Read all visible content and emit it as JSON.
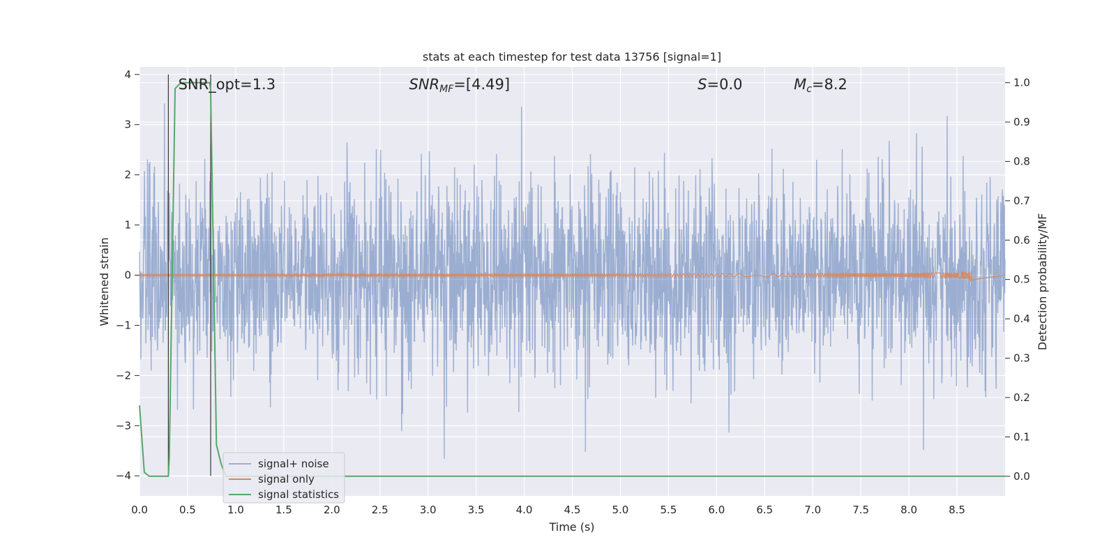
{
  "chart_data": {
    "type": "line",
    "title": "stats at each timestep for test data 13756 [signal=1]",
    "xlabel": "Time (s)",
    "ylabel_left": "Whitened strain",
    "ylabel_right": "Detection probability/MF",
    "xlim": [
      0,
      9.0
    ],
    "ylim_left": [
      -4.4,
      4.15
    ],
    "ylim_right": [
      -0.05,
      1.04
    ],
    "x_ticks": [
      0.0,
      0.5,
      1.0,
      1.5,
      2.0,
      2.5,
      3.0,
      3.5,
      4.0,
      4.5,
      5.0,
      5.5,
      6.0,
      6.5,
      7.0,
      7.5,
      8.0,
      8.5
    ],
    "x_tick_labels": [
      "0.0",
      "0.5",
      "1.0",
      "1.5",
      "2.0",
      "2.5",
      "3.0",
      "3.5",
      "4.0",
      "4.5",
      "5.0",
      "5.5",
      "6.0",
      "6.5",
      "7.0",
      "7.5",
      "8.0",
      "8.5"
    ],
    "y_left_ticks": [
      -4,
      -3,
      -2,
      -1,
      0,
      1,
      2,
      3,
      4
    ],
    "y_left_tick_labels": [
      "−4",
      "−3",
      "−2",
      "−1",
      "0",
      "1",
      "2",
      "3",
      "4"
    ],
    "y_right_ticks": [
      0.0,
      0.1,
      0.2,
      0.3,
      0.4,
      0.5,
      0.6,
      0.7,
      0.8,
      0.9,
      1.0
    ],
    "y_right_tick_labels": [
      "0.0",
      "0.1",
      "0.2",
      "0.3",
      "0.4",
      "0.5",
      "0.6",
      "0.7",
      "0.8",
      "0.9",
      "1.0"
    ],
    "grid": true,
    "legend_position": "lower-left",
    "annotations": [
      {
        "text": "SNR_opt=1.3",
        "x": 0.2,
        "y": 3.8
      },
      {
        "text": "SNR_MF=[4.49]",
        "x": 2.6,
        "y": 3.8
      },
      {
        "text": "S=0.0",
        "x": 5.6,
        "y": 3.8
      },
      {
        "text": "M_c=8.2",
        "x": 6.6,
        "y": 3.8
      }
    ],
    "vlines": [
      {
        "x": 0.3,
        "y_from": -4.0,
        "y_to": 4.0
      },
      {
        "x": 0.74,
        "y_from": -4.0,
        "y_to": 4.0
      }
    ],
    "series": [
      {
        "name": "signal+ noise",
        "axis": "left",
        "color": "#4c72b0",
        "alpha": 0.5,
        "kind": "noise",
        "t_start": 0.0,
        "t_end": 9.0,
        "typical_range": [
          -2.2,
          2.2
        ],
        "min": -4.0,
        "max": 3.78
      },
      {
        "name": "signal only",
        "axis": "left",
        "color": "#dd8452",
        "kind": "chirp",
        "t_start": 0.0,
        "t_merger": 8.65,
        "peak_amplitude": 0.18
      },
      {
        "name": "signal statistics",
        "axis": "right",
        "color": "#55a868",
        "kind": "line",
        "x": [
          0.0,
          0.05,
          0.1,
          0.2,
          0.3,
          0.31,
          0.37,
          0.43,
          0.5,
          0.73,
          0.74,
          0.8,
          0.85,
          0.9,
          1.0,
          2.0,
          3.0,
          4.0,
          5.0,
          6.0,
          7.0,
          8.0,
          9.0
        ],
        "y": [
          0.18,
          0.01,
          0.0,
          0.0,
          0.0,
          0.05,
          0.985,
          1.0,
          1.0,
          1.0,
          0.98,
          0.08,
          0.03,
          0.0,
          0.0,
          0.0,
          0.0,
          0.0,
          0.0,
          0.0,
          0.0,
          0.0,
          0.0
        ]
      }
    ]
  }
}
